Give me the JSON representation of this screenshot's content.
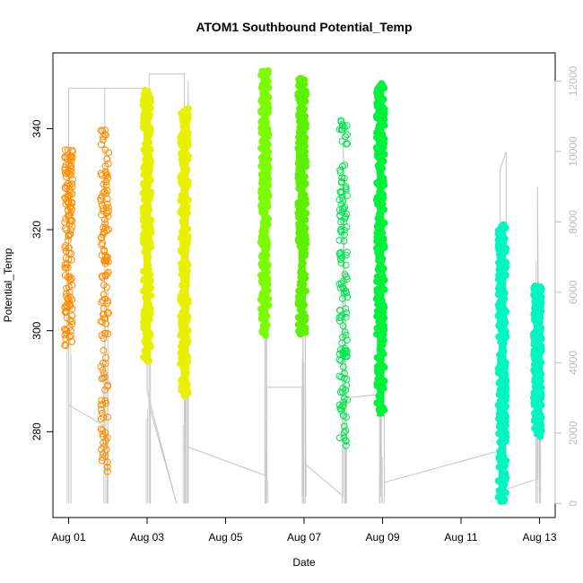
{
  "chart_data": {
    "type": "scatter",
    "title": "ATOM1 Southbound Potential_Temp",
    "xlabel": "Date",
    "ylabel": "Potential_Temp",
    "xlim": [
      -0.4,
      12.4
    ],
    "ylim": [
      263,
      355
    ],
    "right_axis": {
      "ylim": [
        -400,
        12800
      ],
      "ticks": [
        0,
        2000,
        4000,
        6000,
        8000,
        10000,
        12000
      ],
      "color": "#bdbdbd"
    },
    "x_ticks": [
      {
        "value": 0,
        "label": "Aug 01"
      },
      {
        "value": 2,
        "label": "Aug 03"
      },
      {
        "value": 4,
        "label": "Aug 05"
      },
      {
        "value": 6,
        "label": "Aug 07"
      },
      {
        "value": 8,
        "label": "Aug 09"
      },
      {
        "value": 10,
        "label": "Aug 11"
      },
      {
        "value": 12,
        "label": "Aug 13"
      }
    ],
    "y_ticks": [
      280,
      300,
      320,
      340
    ],
    "series": [
      {
        "x": 0.0,
        "ymin": 297,
        "ymax": 336,
        "color": "#ff8c00",
        "marker": "ring"
      },
      {
        "x": 0.92,
        "ymin": 272,
        "ymax": 340,
        "color": "#ff8c00",
        "marker": "ring"
      },
      {
        "x": 2.0,
        "ymin": 294,
        "ymax": 348,
        "color": "#e8f000",
        "marker": "filled"
      },
      {
        "x": 2.95,
        "ymin": 287,
        "ymax": 344,
        "color": "#e8f000",
        "marker": "filled"
      },
      {
        "x": 5.0,
        "ymin": 299,
        "ymax": 352,
        "color": "#7cfc00",
        "marker": "filled"
      },
      {
        "x": 5.95,
        "ymin": 299,
        "ymax": 350,
        "color": "#5cf000",
        "marker": "filled"
      },
      {
        "x": 7.0,
        "ymin": 277,
        "ymax": 343,
        "color": "#00e64d",
        "marker": "ring"
      },
      {
        "x": 7.95,
        "ymin": 283,
        "ymax": 349,
        "color": "#00f03c",
        "marker": "filled"
      },
      {
        "x": 11.05,
        "ymin": 266,
        "ymax": 321,
        "color": "#00f5c0",
        "marker": "filled"
      },
      {
        "x": 11.95,
        "ymin": 279,
        "ymax": 309,
        "color": "#00f5c0",
        "marker": "filled"
      }
    ],
    "depth_trace": [
      [
        0.0,
        1800
      ],
      [
        0.0,
        11800
      ],
      [
        0.92,
        11800
      ],
      [
        0.92,
        2200
      ],
      [
        0.0,
        2800
      ],
      [
        0.0,
        11800
      ],
      [
        2.0,
        11800
      ],
      [
        2.0,
        3200
      ],
      [
        2.75,
        0
      ],
      [
        2.05,
        2800
      ],
      [
        2.05,
        12200
      ],
      [
        2.95,
        12200
      ],
      [
        2.95,
        0
      ],
      [
        3.05,
        12000
      ],
      [
        3.05,
        0
      ],
      [
        3.05,
        1600
      ],
      [
        5.0,
        800
      ],
      [
        5.0,
        12000
      ],
      [
        5.05,
        200
      ],
      [
        5.05,
        3300
      ],
      [
        5.95,
        3300
      ],
      [
        5.95,
        200
      ],
      [
        6.0,
        12200
      ],
      [
        6.05,
        200
      ],
      [
        6.05,
        1100
      ],
      [
        7.0,
        200
      ],
      [
        7.0,
        10500
      ],
      [
        7.05,
        3000
      ],
      [
        7.95,
        3100
      ],
      [
        7.95,
        200
      ],
      [
        8.0,
        12000
      ],
      [
        8.05,
        200
      ],
      [
        8.05,
        600
      ],
      [
        11.0,
        1500
      ],
      [
        11.0,
        9500
      ],
      [
        11.15,
        10000
      ],
      [
        11.15,
        400
      ],
      [
        11.95,
        700
      ],
      [
        11.95,
        9000
      ],
      [
        12.0,
        300
      ]
    ]
  }
}
